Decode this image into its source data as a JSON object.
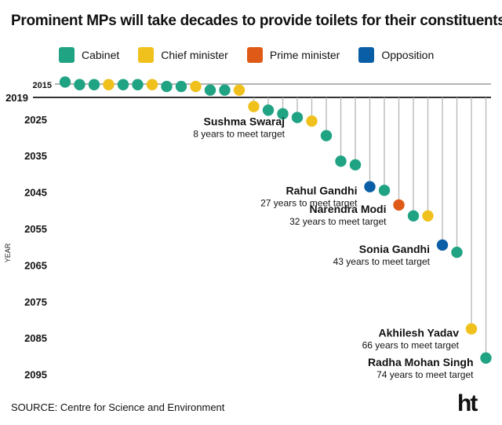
{
  "title": "Prominent MPs will take decades to provide toilets for their constituents",
  "legend": [
    {
      "label": "Cabinet",
      "color": "#1fa383"
    },
    {
      "label": "Chief minister",
      "color": "#f0c11c"
    },
    {
      "label": "Prime minister",
      "color": "#df5a16"
    },
    {
      "label": "Opposition",
      "color": "#0a5ea6"
    }
  ],
  "source": "SOURCE: Centre for Science and Environment",
  "logo": "ht",
  "chart_data": {
    "type": "scatter",
    "ylabel": "YEAR",
    "yticks": [
      "2015",
      "2019",
      "2025",
      "2035",
      "2045",
      "2055",
      "2065",
      "2075",
      "2085",
      "2095"
    ],
    "ylim": [
      2015,
      2095
    ],
    "reference_years": [
      2015,
      2019
    ],
    "points": [
      {
        "year": 2015.0,
        "group": "Cabinet"
      },
      {
        "year": 2015.5,
        "group": "Cabinet"
      },
      {
        "year": 2015.5,
        "group": "Cabinet"
      },
      {
        "year": 2015.5,
        "group": "Chief minister"
      },
      {
        "year": 2015.5,
        "group": "Cabinet"
      },
      {
        "year": 2015.5,
        "group": "Cabinet"
      },
      {
        "year": 2015.5,
        "group": "Chief minister"
      },
      {
        "year": 2016.0,
        "group": "Cabinet"
      },
      {
        "year": 2016.0,
        "group": "Cabinet"
      },
      {
        "year": 2016.0,
        "group": "Chief minister"
      },
      {
        "year": 2017.0,
        "group": "Cabinet"
      },
      {
        "year": 2017.0,
        "group": "Cabinet"
      },
      {
        "year": 2017.0,
        "group": "Chief minister"
      },
      {
        "year": 2021.5,
        "group": "Chief minister"
      },
      {
        "year": 2022.5,
        "group": "Cabinet"
      },
      {
        "year": 2023.5,
        "group": "Cabinet"
      },
      {
        "year": 2024.5,
        "group": "Cabinet",
        "label": "Sushma Swaraj",
        "sublabel": "8 years to meet target"
      },
      {
        "year": 2025.5,
        "group": "Chief minister"
      },
      {
        "year": 2029.5,
        "group": "Cabinet"
      },
      {
        "year": 2036.5,
        "group": "Cabinet"
      },
      {
        "year": 2037.5,
        "group": "Cabinet"
      },
      {
        "year": 2043.5,
        "group": "Opposition",
        "label": "Rahul Gandhi",
        "sublabel": "27 years to meet target"
      },
      {
        "year": 2044.5,
        "group": "Cabinet"
      },
      {
        "year": 2048.5,
        "group": "Prime minister",
        "label": "Narendra Modi",
        "sublabel": "32 years to meet target"
      },
      {
        "year": 2051.5,
        "group": "Cabinet"
      },
      {
        "year": 2051.5,
        "group": "Chief minister"
      },
      {
        "year": 2059.5,
        "group": "Opposition",
        "label": "Sonia Gandhi",
        "sublabel": "43 years to meet target"
      },
      {
        "year": 2061.5,
        "group": "Cabinet"
      },
      {
        "year": 2082.5,
        "group": "Chief minister",
        "label": "Akhilesh Yadav",
        "sublabel": "66 years to meet target"
      },
      {
        "year": 2090.5,
        "group": "Cabinet",
        "label": "Radha Mohan Singh",
        "sublabel": "74 years to meet target"
      }
    ]
  }
}
